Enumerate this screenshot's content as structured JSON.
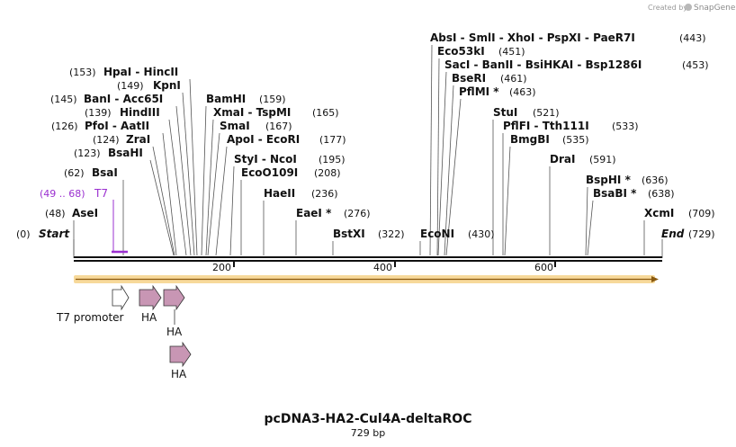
{
  "credit": {
    "prefix": "Created by",
    "brand": "SnapGene"
  },
  "title": "pcDNA3-HA2-Cul4A-deltaROC",
  "subtitle": "729 bp",
  "ends": {
    "start_label": "Start",
    "start_pos": "(0)",
    "end_label": "End",
    "end_pos": "(729)"
  },
  "ticks": [
    "200",
    "400",
    "600"
  ],
  "primer": {
    "name": "T7",
    "range": "(49 .. 68)",
    "color": "#9b30d0"
  },
  "sites": [
    {
      "name": "AseI",
      "pos": "(48)"
    },
    {
      "name": "BsaI",
      "pos": "(62)"
    },
    {
      "name": "BsaHI",
      "pos": "(123)"
    },
    {
      "name": "ZraI",
      "pos": "(124)"
    },
    {
      "name": "PfoI  -  AatII",
      "pos": "(126)"
    },
    {
      "name": "HindIII",
      "pos": "(139)"
    },
    {
      "name": "BanI  -  Acc65I",
      "pos": "(145)"
    },
    {
      "name": "KpnI",
      "pos": "(149)"
    },
    {
      "name": "HpaI  -  HincII",
      "pos": "(153)"
    },
    {
      "name": "BamHI",
      "pos": "(159)"
    },
    {
      "name": "XmaI  -  TspMI",
      "pos": "(165)"
    },
    {
      "name": "SmaI",
      "pos": "(167)"
    },
    {
      "name": "ApoI  -  EcoRI",
      "pos": "(177)"
    },
    {
      "name": "StyI  -  NcoI",
      "pos": "(195)"
    },
    {
      "name": "EcoO109I",
      "pos": "(208)"
    },
    {
      "name": "HaeII",
      "pos": "(236)"
    },
    {
      "name": "EaeI *",
      "pos": "(276)"
    },
    {
      "name": "BstXI",
      "pos": "(322)"
    },
    {
      "name": "EcoNI",
      "pos": "(430)"
    },
    {
      "name": "AbsI  -  SmlI  -  XhoI  -  PspXI  -  PaeR7I",
      "pos": "(443)"
    },
    {
      "name": "Eco53kI",
      "pos": "(451)"
    },
    {
      "name": "SacI  -  BanII  -  BsiHKAI  -  Bsp1286I",
      "pos": "(453)"
    },
    {
      "name": "BseRI",
      "pos": "(461)"
    },
    {
      "name": "PflMI *",
      "pos": "(463)"
    },
    {
      "name": "StuI",
      "pos": "(521)"
    },
    {
      "name": "PflFI  -  Tth111I",
      "pos": "(533)"
    },
    {
      "name": "BmgBI",
      "pos": "(535)"
    },
    {
      "name": "DraI",
      "pos": "(591)"
    },
    {
      "name": "BspHI *",
      "pos": "(636)"
    },
    {
      "name": "BsaBI *",
      "pos": "(638)"
    },
    {
      "name": "XcmI",
      "pos": "(709)"
    }
  ],
  "features": {
    "t7_promoter": "T7 promoter",
    "ha1": "HA",
    "ha2": "HA",
    "ha3": "HA",
    "feature_color": "#c896b4",
    "promoter_color": "#ffffff",
    "orf_color": "#f0b43c"
  }
}
